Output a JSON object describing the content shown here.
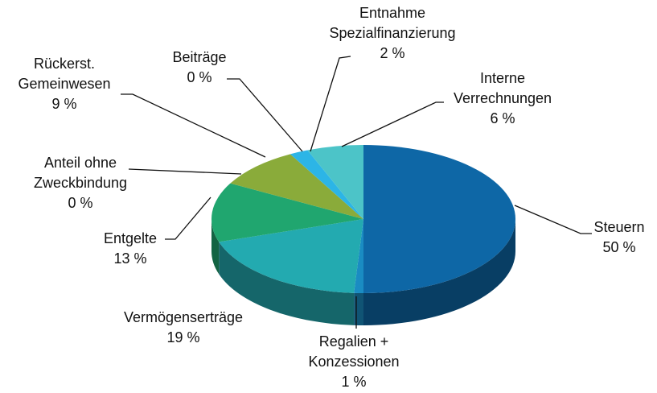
{
  "chart_data": {
    "type": "pie",
    "categories": [
      "Steuern",
      "Regalien +\nKonzessionen",
      "Vermögenserträge",
      "Entgelte",
      "Anteil ohne\nZweckbindung",
      "Rückerst.\nGemeinwesen",
      "Beiträge",
      "Entnahme\nSpezialfinanzierung",
      "Interne\nVerrechnungen"
    ],
    "values": [
      50,
      1,
      19,
      13,
      0,
      9,
      0,
      2,
      6
    ],
    "value_labels": [
      "50 %",
      "1 %",
      "19 %",
      "13 %",
      "0 %",
      "9 %",
      "0 %",
      "2 %",
      "6 %"
    ],
    "colors": [
      "#0e67a6",
      "#1a8cc2",
      "#23aab0",
      "#20a66f",
      "#3aa85a",
      "#8aab3a",
      "#5fb0d0",
      "#2cb5e6",
      "#4cc4c8"
    ]
  }
}
